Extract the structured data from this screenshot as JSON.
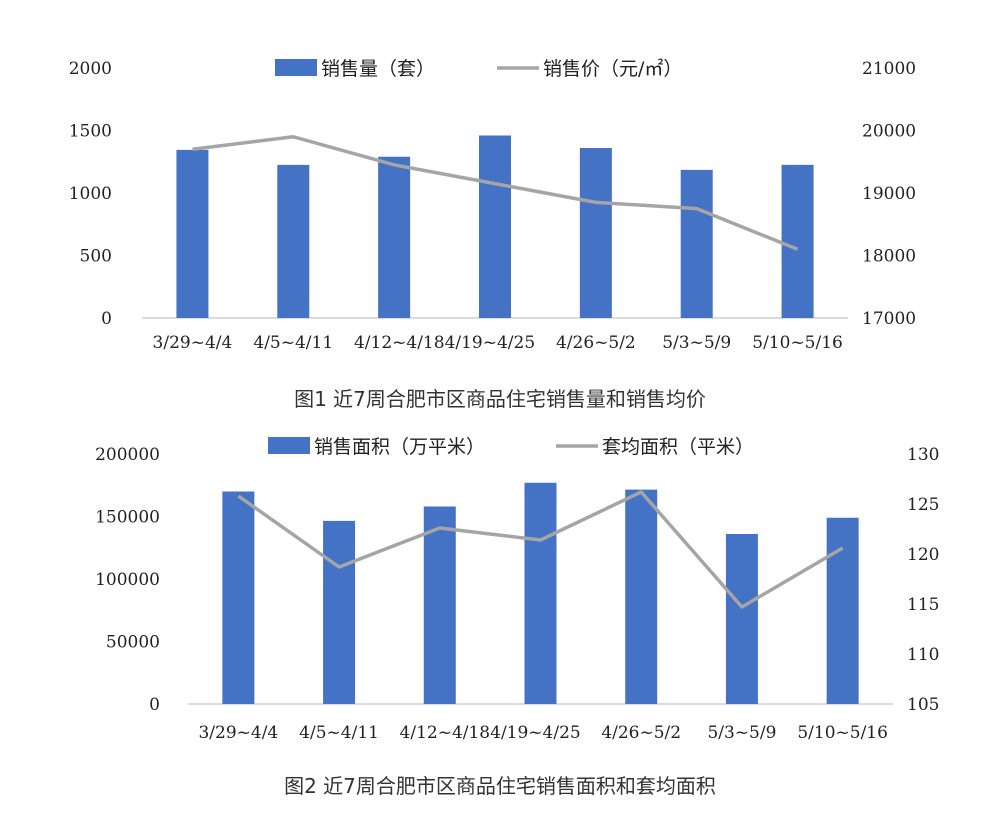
{
  "colors": {
    "bar": "#4472c4",
    "line": "#a5a5a5"
  },
  "chart_data": [
    {
      "type": "bar",
      "categories": [
        "3/29~4/4",
        "4/5~4/11",
        "4/12~4/18",
        "4/19~4/25",
        "4/26~5/2",
        "5/3~5/9",
        "5/10~5/16"
      ],
      "tick_labels": [
        "3/29~4/4",
        "4/5~4/11",
        "4/12~4/184/19~4/25",
        "",
        "4/26~5/2",
        "5/3~5/9",
        "5/10~5/16"
      ],
      "series": [
        {
          "name": "销售量（套）",
          "type": "bar",
          "axis": "left",
          "values": [
            1345,
            1225,
            1290,
            1460,
            1360,
            1185,
            1225
          ]
        },
        {
          "name": "销售价（元/㎡）",
          "type": "line",
          "axis": "right",
          "values": [
            19700,
            19900,
            19450,
            19150,
            18850,
            18750,
            18100
          ]
        }
      ],
      "ylim": [
        0,
        2000
      ],
      "y_ticks": [
        "0",
        "500",
        "1000",
        "1500",
        "2000"
      ],
      "y2lim": [
        17000,
        21000
      ],
      "y2_ticks": [
        "17000",
        "18000",
        "19000",
        "20000",
        "21000"
      ],
      "legend_position": "top-center",
      "grid": false,
      "caption": "图1  近7周合肥市区商品住宅销售量和销售均价"
    },
    {
      "type": "bar",
      "categories": [
        "3/29~4/4",
        "4/5~4/11",
        "4/12~4/18",
        "4/19~4/25",
        "4/26~5/2",
        "5/3~5/9",
        "5/10~5/16"
      ],
      "tick_labels": [
        "3/29~4/4",
        "4/5~4/11",
        "4/12~4/184/19~4/25",
        "",
        "4/26~5/2",
        "5/3~5/9",
        "5/10~5/16"
      ],
      "series": [
        {
          "name": "销售面积（万平米）",
          "type": "bar",
          "axis": "left",
          "values": [
            170000,
            146500,
            158000,
            177000,
            171500,
            136000,
            149000
          ]
        },
        {
          "name": "套均面积（平米）",
          "type": "line",
          "axis": "right",
          "values": [
            125.8,
            118.7,
            122.6,
            121.4,
            126.2,
            114.7,
            120.6
          ]
        }
      ],
      "ylim": [
        0,
        200000
      ],
      "y_ticks": [
        "0",
        "50000",
        "100000",
        "150000",
        "200000"
      ],
      "y2lim": [
        105,
        130
      ],
      "y2_ticks": [
        "105",
        "110",
        "115",
        "120",
        "125",
        "130"
      ],
      "legend_position": "top-center",
      "grid": false,
      "caption": "图2  近7周合肥市区商品住宅销售面积和套均面积"
    }
  ]
}
